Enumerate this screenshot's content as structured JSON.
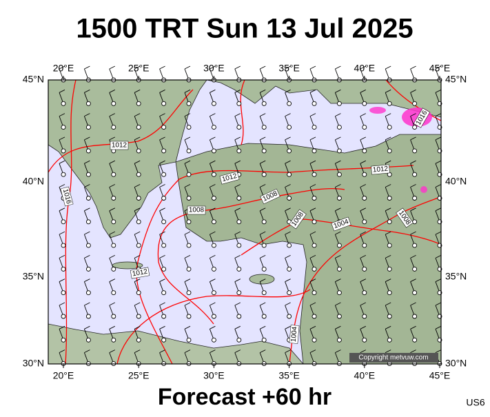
{
  "title": "1500 TRT Sun 13 Jul 2025",
  "longitude_labels": [
    "20°E",
    "25°E",
    "30°E",
    "35°E",
    "40°E",
    "45°E"
  ],
  "latitude_labels": [
    "45°N",
    "40°N",
    "35°N",
    "30°N"
  ],
  "isobar_labels": [
    "1012",
    "1016",
    "1012",
    "1008",
    "1008",
    "1008",
    "1004",
    "1012",
    "1008",
    "1012",
    "1016",
    "1004"
  ],
  "copyright": "Copyright metvuw.com",
  "footer": "Forecast +60 hr",
  "code": "US6"
}
